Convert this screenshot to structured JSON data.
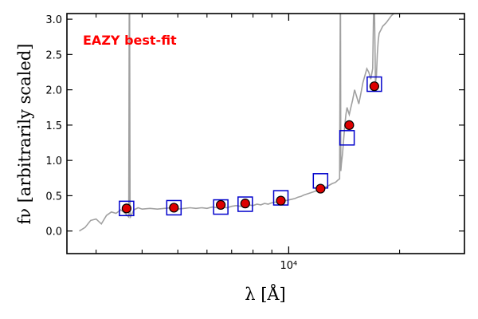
{
  "chart_data": {
    "type": "scatter",
    "title": "",
    "annotation": {
      "text": "EAZY best-fit",
      "color": "#ff0000"
    },
    "xlabel": "λ [Å]",
    "ylabel": "fν [arbitrarily scaled]",
    "x_scale": "log",
    "xlim": [
      2500,
      30000
    ],
    "ylim": [
      -0.32,
      3.08
    ],
    "y_ticks": [
      0.0,
      0.5,
      1.0,
      1.5,
      2.0,
      2.5,
      3.0
    ],
    "y_tick_labels": [
      "0.0",
      "0.5",
      "1.0",
      "1.5",
      "2.0",
      "2.5",
      "3.0"
    ],
    "x_major_ticks": [
      10000
    ],
    "x_major_tick_labels": [
      "10⁴"
    ],
    "x_minor_ticks": [
      3000,
      4000,
      5000,
      6000,
      7000,
      8000,
      9000,
      20000,
      30000
    ],
    "grid": false,
    "colors": {
      "model": "#a0a0a0",
      "observed": "#dd0000",
      "model_photometry": "#0000cc"
    },
    "series": [
      {
        "kind": "line",
        "x": [
          2700,
          2800,
          2900,
          3000,
          3100,
          3200,
          3300,
          3400,
          3500,
          3600,
          3680,
          3690,
          3700,
          3710,
          3720,
          3800,
          3900,
          4000,
          4200,
          4400,
          4600,
          4800,
          5000,
          5200,
          5400,
          5600,
          5800,
          6000,
          6200,
          6400,
          6600,
          6800,
          7000,
          7200,
          7400,
          7600,
          7800,
          8000,
          8200,
          8400,
          8600,
          8800,
          9000,
          9200,
          9400,
          9600,
          9800,
          10000,
          10200,
          10400,
          10600,
          10800,
          11000,
          11300,
          11600,
          11900,
          12200,
          12500,
          12800,
          13100,
          13400,
          13600,
          13750,
          13800,
          13820,
          13850,
          13900,
          14000,
          14100,
          14200,
          14300,
          14400,
          14500,
          14600,
          14700,
          14900,
          15100,
          15300,
          15500,
          15700,
          15900,
          16100,
          16300,
          16500,
          16700,
          16900,
          17000,
          17100,
          17200,
          17300,
          17400,
          17500,
          17600,
          17800,
          18000,
          18400,
          19000,
          19500
        ],
        "y": [
          0.0,
          0.05,
          0.15,
          0.17,
          0.1,
          0.22,
          0.27,
          0.25,
          0.3,
          0.25,
          0.2,
          3.1,
          3.1,
          0.22,
          0.2,
          0.3,
          0.33,
          0.31,
          0.32,
          0.31,
          0.32,
          0.33,
          0.31,
          0.32,
          0.33,
          0.32,
          0.33,
          0.32,
          0.34,
          0.33,
          0.34,
          0.33,
          0.35,
          0.36,
          0.35,
          0.36,
          0.37,
          0.36,
          0.38,
          0.37,
          0.39,
          0.38,
          0.4,
          0.41,
          0.4,
          0.42,
          0.43,
          0.44,
          0.45,
          0.46,
          0.48,
          0.49,
          0.51,
          0.53,
          0.55,
          0.57,
          0.59,
          0.62,
          0.64,
          0.67,
          0.69,
          0.72,
          0.74,
          3.1,
          3.1,
          0.85,
          0.95,
          1.1,
          1.3,
          1.5,
          1.65,
          1.75,
          1.7,
          1.65,
          1.72,
          1.85,
          2.0,
          1.9,
          1.8,
          1.95,
          2.1,
          2.2,
          2.3,
          2.25,
          2.15,
          2.3,
          3.1,
          3.1,
          2.1,
          2.2,
          2.5,
          2.7,
          2.8,
          2.85,
          2.9,
          2.95,
          3.05,
          3.1
        ]
      },
      {
        "kind": "markers",
        "marker": "square",
        "x": [
          3630,
          4880,
          6540,
          7620,
          9520,
          12200,
          14400,
          17080
        ],
        "y": [
          0.32,
          0.33,
          0.34,
          0.38,
          0.47,
          0.71,
          1.32,
          2.08
        ]
      },
      {
        "kind": "markers",
        "marker": "circle",
        "x": [
          3630,
          4880,
          6540,
          7620,
          9520,
          12200,
          14600,
          17080
        ],
        "y": [
          0.32,
          0.33,
          0.37,
          0.39,
          0.43,
          0.6,
          1.5,
          2.05
        ]
      }
    ]
  }
}
